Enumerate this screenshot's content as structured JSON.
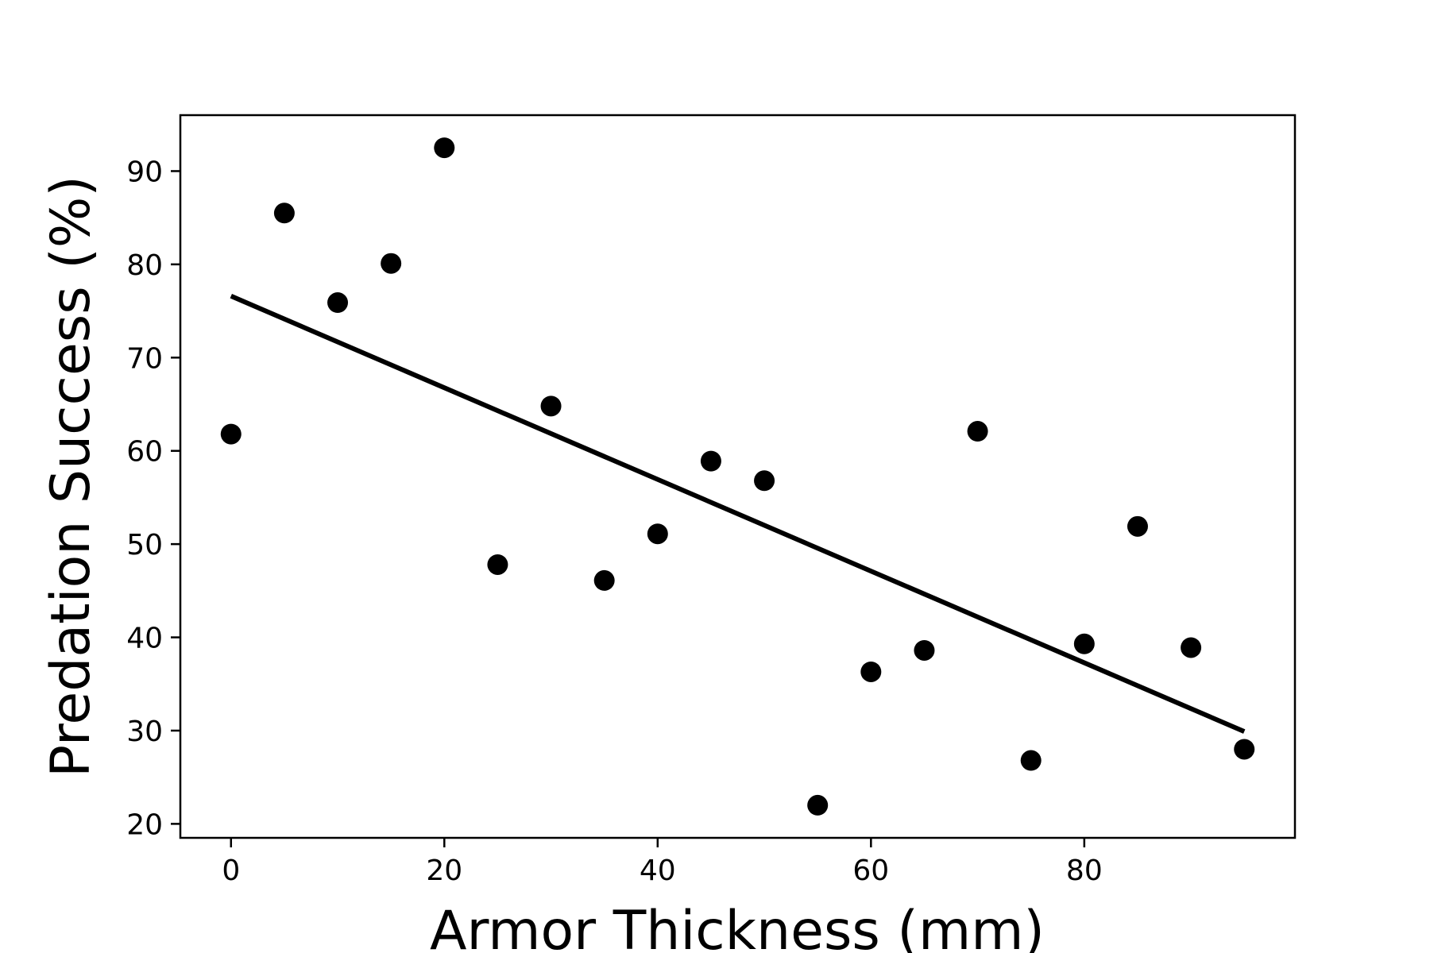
{
  "chart_data": {
    "type": "scatter",
    "xlabel": "Armor Thickness (mm)",
    "ylabel": "Predation Success (%)",
    "xlim": [
      -4.75,
      99.75
    ],
    "ylim": [
      18.5,
      96.0
    ],
    "xticks": [
      0,
      20,
      40,
      60,
      80
    ],
    "xtick_labels": [
      "0",
      "20",
      "40",
      "60",
      "80"
    ],
    "yticks": [
      20,
      30,
      40,
      50,
      60,
      70,
      80,
      90
    ],
    "ytick_labels": [
      "20",
      "30",
      "40",
      "50",
      "60",
      "70",
      "80",
      "90"
    ],
    "grid": false,
    "legend": "none",
    "series": [
      {
        "kind": "points",
        "color": "#000000",
        "x": [
          0,
          5,
          10,
          15,
          20,
          25,
          30,
          35,
          40,
          45,
          50,
          55,
          60,
          65,
          70,
          75,
          80,
          85,
          90,
          95
        ],
        "y": [
          61.8,
          85.5,
          75.9,
          80.1,
          92.5,
          47.8,
          64.8,
          46.1,
          51.1,
          58.9,
          56.8,
          22.0,
          36.3,
          38.6,
          62.1,
          26.8,
          39.3,
          51.9,
          38.9,
          28.0
        ]
      },
      {
        "kind": "trend-line",
        "color": "#000000",
        "x": [
          0,
          95
        ],
        "y": [
          76.6,
          29.9
        ]
      }
    ]
  }
}
